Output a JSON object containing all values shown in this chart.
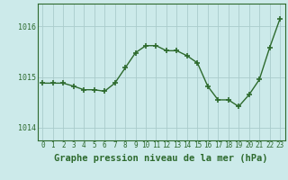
{
  "hours": [
    0,
    1,
    2,
    3,
    4,
    5,
    6,
    7,
    8,
    9,
    10,
    11,
    12,
    13,
    14,
    15,
    16,
    17,
    18,
    19,
    20,
    21,
    22,
    23
  ],
  "pressure": [
    1014.88,
    1014.88,
    1014.88,
    1014.82,
    1014.75,
    1014.75,
    1014.72,
    1014.88,
    1015.18,
    1015.48,
    1015.62,
    1015.62,
    1015.52,
    1015.52,
    1015.42,
    1015.28,
    1014.82,
    1014.55,
    1014.55,
    1014.42,
    1014.65,
    1014.95,
    1015.58,
    1016.15
  ],
  "line_color": "#2d6a2d",
  "marker": "+",
  "marker_size": 4,
  "marker_lw": 1.2,
  "line_width": 1.0,
  "bg_color": "#cceaea",
  "grid_color": "#aacccc",
  "ylabel_ticks": [
    1014,
    1015,
    1016
  ],
  "xlabel": "Graphe pression niveau de la mer (hPa)",
  "ylim_min": 1013.75,
  "ylim_max": 1016.45,
  "tick_fontsize": 5.5,
  "xlabel_fontsize": 7.5
}
